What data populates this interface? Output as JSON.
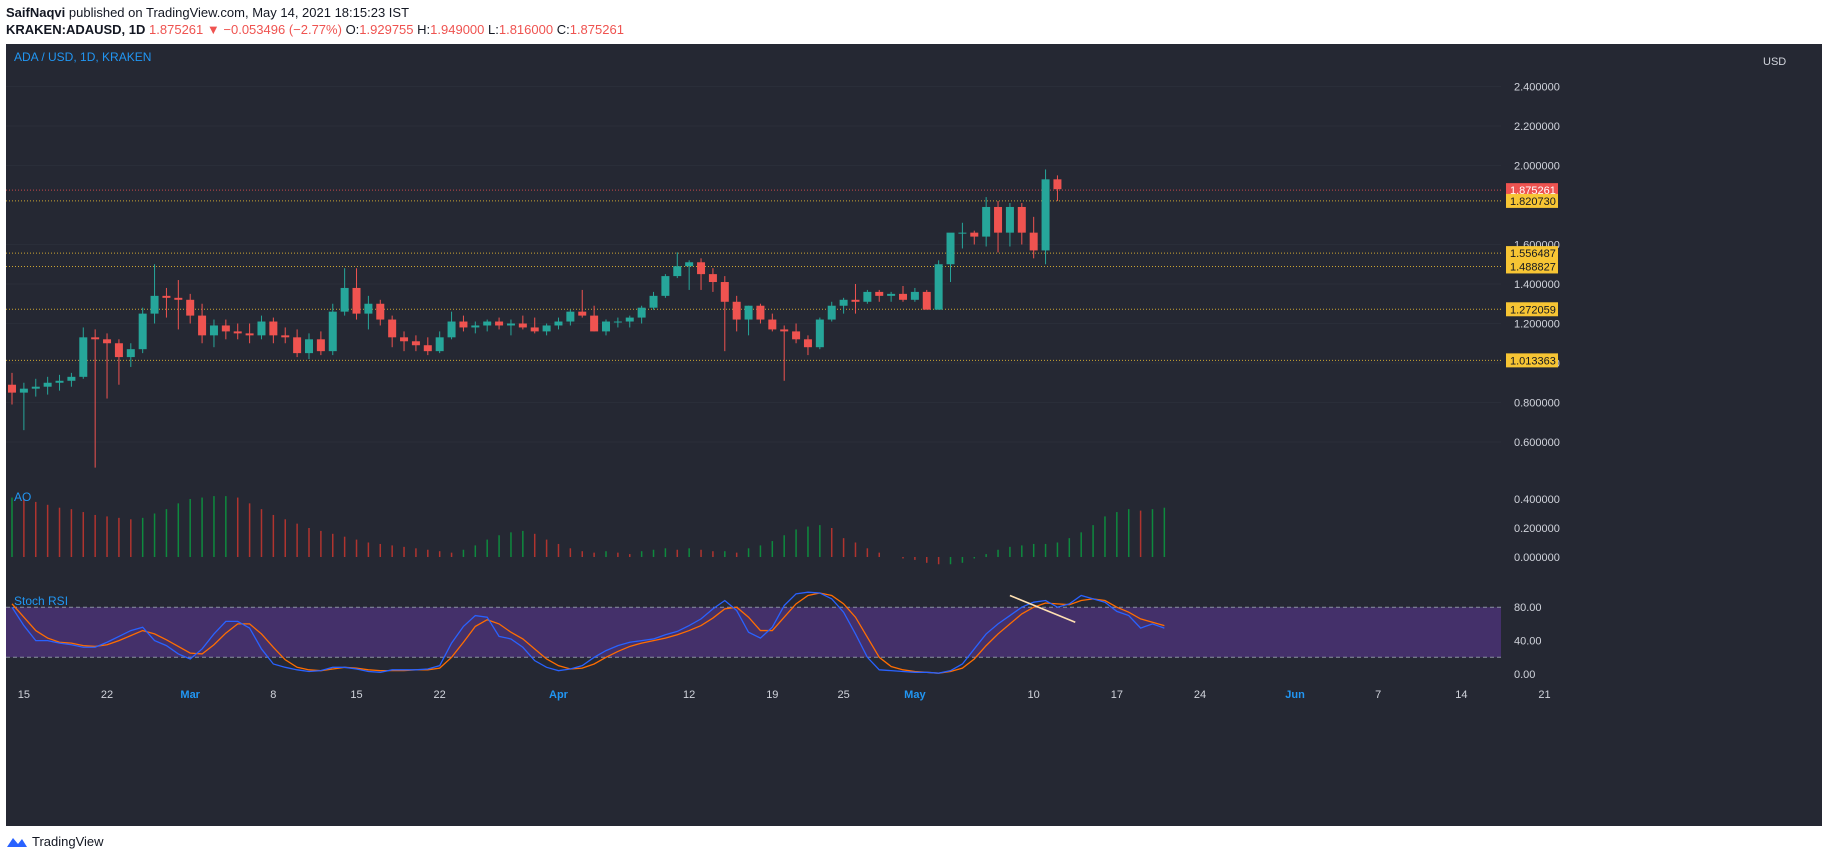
{
  "header": {
    "publisher": "SaifNaqvi",
    "published_text": "published on TradingView.com, May 14, 2021 18:15:23 IST",
    "symbol": "KRAKEN:ADAUSD, 1D",
    "last": "1.875261",
    "change": "−0.053496 (−2.77%)",
    "o_label": "O:",
    "o": "1.929755",
    "h_label": "H:",
    "h": "1.949000",
    "l_label": "L:",
    "l": "1.816000",
    "c_label": "C:",
    "c": "1.875261"
  },
  "pane_title": "ADA / USD, 1D, KRAKEN",
  "ao_title": "AO",
  "stoch_title": "Stoch RSI",
  "currency": "USD",
  "footer_brand": "TradingView",
  "colors": {
    "bg": "#252833",
    "up": "#26a69a",
    "down": "#ef5350",
    "label_bg": "#f7c534",
    "axis_text": "#d1d4dc",
    "blue": "#2196f3",
    "k_line": "#2962ff",
    "d_line": "#ff6d00",
    "stoch_band": "#44306a"
  },
  "chart_data": [
    {
      "type": "candlestick",
      "title": "ADA / USD, 1D, KRAKEN",
      "y_ticks": [
        "0.600000",
        "0.800000",
        "1.000000",
        "1.200000",
        "1.400000",
        "1.600000",
        "2.000000",
        "2.200000",
        "2.400000"
      ],
      "x_ticks": [
        "15",
        "22",
        "Mar",
        "8",
        "15",
        "22",
        "Apr",
        "12",
        "19",
        "25",
        "May",
        "10",
        "17",
        "24",
        "Jun",
        "7",
        "14",
        "21"
      ],
      "ylim": [
        0.35,
        2.55
      ],
      "start_day": "2021-02-14",
      "ohlc": [
        [
          0.89,
          0.95,
          0.79,
          0.85
        ],
        [
          0.85,
          0.9,
          0.66,
          0.87
        ],
        [
          0.87,
          0.92,
          0.83,
          0.88
        ],
        [
          0.88,
          0.93,
          0.84,
          0.9
        ],
        [
          0.9,
          0.94,
          0.86,
          0.91
        ],
        [
          0.91,
          0.95,
          0.88,
          0.93
        ],
        [
          0.93,
          1.18,
          0.92,
          1.13
        ],
        [
          1.13,
          1.17,
          0.47,
          1.12
        ],
        [
          1.12,
          1.15,
          0.82,
          1.1
        ],
        [
          1.1,
          1.12,
          0.89,
          1.03
        ],
        [
          1.03,
          1.1,
          0.98,
          1.07
        ],
        [
          1.07,
          1.28,
          1.05,
          1.25
        ],
        [
          1.25,
          1.5,
          1.2,
          1.34
        ],
        [
          1.34,
          1.38,
          1.23,
          1.33
        ],
        [
          1.33,
          1.42,
          1.17,
          1.32
        ],
        [
          1.32,
          1.35,
          1.2,
          1.24
        ],
        [
          1.24,
          1.3,
          1.1,
          1.14
        ],
        [
          1.14,
          1.22,
          1.08,
          1.19
        ],
        [
          1.19,
          1.22,
          1.12,
          1.16
        ],
        [
          1.16,
          1.2,
          1.12,
          1.15
        ],
        [
          1.15,
          1.2,
          1.1,
          1.14
        ],
        [
          1.14,
          1.24,
          1.12,
          1.21
        ],
        [
          1.21,
          1.23,
          1.1,
          1.14
        ],
        [
          1.14,
          1.18,
          1.1,
          1.13
        ],
        [
          1.13,
          1.17,
          1.03,
          1.05
        ],
        [
          1.05,
          1.15,
          1.02,
          1.12
        ],
        [
          1.12,
          1.16,
          1.04,
          1.06
        ],
        [
          1.06,
          1.3,
          1.04,
          1.26
        ],
        [
          1.26,
          1.48,
          1.24,
          1.38
        ],
        [
          1.38,
          1.48,
          1.22,
          1.25
        ],
        [
          1.25,
          1.34,
          1.17,
          1.3
        ],
        [
          1.3,
          1.32,
          1.19,
          1.22
        ],
        [
          1.22,
          1.24,
          1.08,
          1.13
        ],
        [
          1.13,
          1.16,
          1.06,
          1.11
        ],
        [
          1.11,
          1.14,
          1.06,
          1.09
        ],
        [
          1.09,
          1.13,
          1.04,
          1.06
        ],
        [
          1.06,
          1.16,
          1.05,
          1.13
        ],
        [
          1.13,
          1.26,
          1.12,
          1.21
        ],
        [
          1.21,
          1.24,
          1.16,
          1.18
        ],
        [
          1.18,
          1.21,
          1.15,
          1.19
        ],
        [
          1.19,
          1.22,
          1.16,
          1.21
        ],
        [
          1.21,
          1.23,
          1.17,
          1.19
        ],
        [
          1.19,
          1.22,
          1.14,
          1.2
        ],
        [
          1.2,
          1.24,
          1.17,
          1.18
        ],
        [
          1.18,
          1.23,
          1.15,
          1.16
        ],
        [
          1.16,
          1.2,
          1.14,
          1.19
        ],
        [
          1.19,
          1.23,
          1.17,
          1.21
        ],
        [
          1.21,
          1.27,
          1.19,
          1.26
        ],
        [
          1.26,
          1.37,
          1.23,
          1.24
        ],
        [
          1.24,
          1.29,
          1.16,
          1.16
        ],
        [
          1.16,
          1.22,
          1.14,
          1.21
        ],
        [
          1.21,
          1.23,
          1.18,
          1.21
        ],
        [
          1.21,
          1.24,
          1.18,
          1.23
        ],
        [
          1.23,
          1.29,
          1.2,
          1.28
        ],
        [
          1.28,
          1.36,
          1.27,
          1.34
        ],
        [
          1.34,
          1.45,
          1.33,
          1.44
        ],
        [
          1.44,
          1.56,
          1.43,
          1.49
        ],
        [
          1.49,
          1.52,
          1.37,
          1.51
        ],
        [
          1.51,
          1.53,
          1.37,
          1.45
        ],
        [
          1.45,
          1.48,
          1.36,
          1.41
        ],
        [
          1.41,
          1.44,
          1.06,
          1.31
        ],
        [
          1.31,
          1.34,
          1.16,
          1.22
        ],
        [
          1.22,
          1.29,
          1.14,
          1.29
        ],
        [
          1.29,
          1.3,
          1.2,
          1.22
        ],
        [
          1.22,
          1.25,
          1.16,
          1.17
        ],
        [
          1.17,
          1.19,
          0.91,
          1.16
        ],
        [
          1.16,
          1.2,
          1.1,
          1.12
        ],
        [
          1.12,
          1.14,
          1.04,
          1.08
        ],
        [
          1.08,
          1.23,
          1.07,
          1.22
        ],
        [
          1.22,
          1.31,
          1.21,
          1.29
        ],
        [
          1.29,
          1.33,
          1.25,
          1.32
        ],
        [
          1.32,
          1.4,
          1.25,
          1.31
        ],
        [
          1.31,
          1.37,
          1.3,
          1.36
        ],
        [
          1.36,
          1.37,
          1.31,
          1.34
        ],
        [
          1.34,
          1.36,
          1.31,
          1.35
        ],
        [
          1.35,
          1.39,
          1.31,
          1.32
        ],
        [
          1.32,
          1.38,
          1.31,
          1.36
        ],
        [
          1.36,
          1.37,
          1.28,
          1.27
        ],
        [
          1.27,
          1.52,
          1.27,
          1.5
        ],
        [
          1.5,
          1.65,
          1.41,
          1.66
        ],
        [
          1.66,
          1.71,
          1.58,
          1.66
        ],
        [
          1.66,
          1.67,
          1.6,
          1.64
        ],
        [
          1.64,
          1.84,
          1.59,
          1.79
        ],
        [
          1.79,
          1.82,
          1.56,
          1.66
        ],
        [
          1.66,
          1.81,
          1.59,
          1.79
        ],
        [
          1.79,
          1.81,
          1.6,
          1.66
        ],
        [
          1.66,
          1.74,
          1.53,
          1.57
        ],
        [
          1.57,
          1.98,
          1.5,
          1.93
        ],
        [
          1.93,
          1.95,
          1.82,
          1.88
        ]
      ],
      "price_labels": [
        "1.875261",
        "1.820730",
        "1.556487",
        "1.488827",
        "1.272059",
        "1.013363"
      ]
    },
    {
      "type": "bar",
      "title": "AO",
      "y_ticks": [
        "0.000000",
        "0.200000",
        "0.400000"
      ],
      "ylim": [
        -0.09,
        0.45
      ],
      "values": [
        0.41,
        0.4,
        0.38,
        0.36,
        0.34,
        0.33,
        0.31,
        0.29,
        0.28,
        0.27,
        0.26,
        0.27,
        0.3,
        0.33,
        0.37,
        0.4,
        0.41,
        0.42,
        0.42,
        0.41,
        0.37,
        0.33,
        0.29,
        0.26,
        0.23,
        0.2,
        0.18,
        0.16,
        0.14,
        0.12,
        0.1,
        0.09,
        0.08,
        0.07,
        0.06,
        0.05,
        0.04,
        0.03,
        0.05,
        0.08,
        0.12,
        0.15,
        0.17,
        0.18,
        0.16,
        0.12,
        0.09,
        0.06,
        0.04,
        0.03,
        0.04,
        0.03,
        0.02,
        0.04,
        0.05,
        0.06,
        0.05,
        0.06,
        0.05,
        0.04,
        0.04,
        0.03,
        0.06,
        0.08,
        0.11,
        0.15,
        0.19,
        0.21,
        0.22,
        0.2,
        0.13,
        0.1,
        0.06,
        0.03,
        0.0,
        -0.01,
        -0.02,
        -0.04,
        -0.05,
        -0.05,
        -0.04,
        -0.01,
        0.02,
        0.05,
        0.07,
        0.08,
        0.09,
        0.09,
        0.1,
        0.13,
        0.17,
        0.22,
        0.28,
        0.31,
        0.33,
        0.32,
        0.33,
        0.34
      ]
    },
    {
      "type": "line",
      "title": "Stoch RSI",
      "y_ticks": [
        "0.00",
        "40.00",
        "80.00"
      ],
      "band": [
        20,
        80
      ],
      "ylim": [
        -2,
        102
      ],
      "k": [
        80,
        58,
        40,
        40,
        37,
        35,
        32,
        32,
        38,
        45,
        52,
        56,
        40,
        34,
        24,
        18,
        30,
        48,
        63,
        63,
        55,
        30,
        12,
        8,
        5,
        3,
        4,
        8,
        8,
        6,
        3,
        2,
        5,
        5,
        5,
        6,
        10,
        37,
        57,
        70,
        68,
        45,
        42,
        32,
        16,
        8,
        4,
        6,
        10,
        20,
        28,
        34,
        38,
        40,
        42,
        47,
        51,
        58,
        66,
        78,
        88,
        76,
        50,
        43,
        56,
        82,
        96,
        98,
        97,
        90,
        74,
        48,
        20,
        5,
        4,
        3,
        2,
        2,
        1,
        4,
        12,
        30,
        48,
        60,
        70,
        80,
        86,
        88,
        80,
        84,
        94,
        90,
        86,
        75,
        70,
        55,
        60,
        55
      ],
      "d": [
        84,
        68,
        52,
        43,
        38,
        37,
        34,
        33,
        35,
        40,
        46,
        52,
        48,
        41,
        33,
        25,
        24,
        35,
        49,
        60,
        60,
        48,
        32,
        17,
        8,
        5,
        4,
        6,
        8,
        7,
        5,
        4,
        4,
        4,
        5,
        5,
        7,
        20,
        38,
        57,
        65,
        60,
        50,
        42,
        30,
        18,
        10,
        6,
        7,
        12,
        20,
        27,
        33,
        37,
        40,
        43,
        47,
        52,
        58,
        67,
        78,
        80,
        68,
        52,
        52,
        68,
        84,
        94,
        97,
        94,
        84,
        68,
        44,
        20,
        9,
        5,
        3,
        2,
        1,
        3,
        7,
        18,
        34,
        48,
        60,
        72,
        80,
        85,
        84,
        83,
        88,
        90,
        88,
        80,
        74,
        66,
        62,
        58
      ],
      "trend_line_values": [
        94,
        62
      ]
    }
  ]
}
